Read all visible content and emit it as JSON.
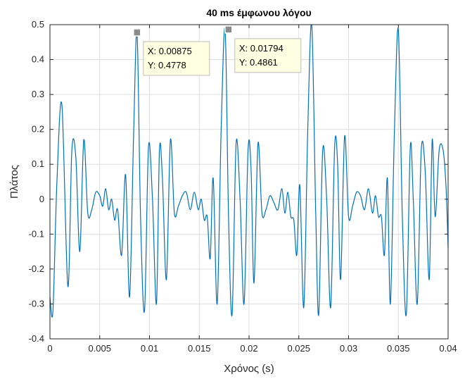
{
  "chart_data": {
    "type": "line",
    "title": "40 ms έμφωνου λόγου",
    "xlabel": "Χρόνος (s)",
    "ylabel": "Πλάτος",
    "xlim": [
      0,
      0.04
    ],
    "ylim": [
      -0.4,
      0.5
    ],
    "xticks": [
      0,
      0.005,
      0.01,
      0.015,
      0.02,
      0.025,
      0.03,
      0.035,
      0.04
    ],
    "xtick_labels": [
      "0",
      "0.005",
      "0.01",
      "0.015",
      "0.02",
      "0.025",
      "0.03",
      "0.035",
      "0.04"
    ],
    "yticks": [
      -0.4,
      -0.3,
      -0.2,
      -0.1,
      0,
      0.1,
      0.2,
      0.3,
      0.4,
      0.5
    ],
    "ytick_labels": [
      "-0.4",
      "-0.3",
      "-0.2",
      "-0.1",
      "0",
      "0.1",
      "0.2",
      "0.3",
      "0.4",
      "0.5"
    ],
    "grid": true,
    "line_color": "#0072BD",
    "series": [
      {
        "x": [
          0,
          0.0003,
          0.0007,
          0.0012,
          0.0018,
          0.0022,
          0.0026,
          0.003,
          0.0034,
          0.0038,
          0.0042,
          0.0046,
          0.005,
          0.0053,
          0.0056,
          0.0059,
          0.0062,
          0.0065,
          0.0068,
          0.0072,
          0.0076,
          0.008,
          0.0084,
          0.00875,
          0.0091,
          0.0095,
          0.0099,
          0.0103,
          0.0107,
          0.011,
          0.0113,
          0.0117,
          0.0121,
          0.0125,
          0.0129,
          0.0133,
          0.0137,
          0.0141,
          0.0145,
          0.0149,
          0.0152,
          0.0155,
          0.0158,
          0.0161,
          0.0164,
          0.0168,
          0.0172,
          0.0176,
          0.01794,
          0.0183,
          0.0187,
          0.0191,
          0.0195,
          0.0199,
          0.0202,
          0.0205,
          0.0209,
          0.0213,
          0.0217,
          0.0221,
          0.0225,
          0.0229,
          0.0233,
          0.0236,
          0.0239,
          0.0242,
          0.0245,
          0.0248,
          0.0251,
          0.0255,
          0.0259,
          0.0263,
          0.0267,
          0.027,
          0.0274,
          0.0278,
          0.0282,
          0.0286,
          0.0289,
          0.0292,
          0.0296,
          0.03,
          0.0304,
          0.0308,
          0.0312,
          0.0316,
          0.032,
          0.0324,
          0.0327,
          0.033,
          0.0333,
          0.0336,
          0.0339,
          0.0342,
          0.0346,
          0.035,
          0.0354,
          0.0358,
          0.0362,
          0.0365,
          0.0369,
          0.0373,
          0.0377,
          0.0381,
          0.0384,
          0.0387,
          0.0391,
          0.0395,
          0.0398,
          0.04
        ],
        "y": [
          -0.28,
          -0.32,
          0.05,
          0.27,
          -0.25,
          0.14,
          0.12,
          -0.15,
          0.17,
          -0.04,
          -0.03,
          0.02,
          0.01,
          -0.02,
          0.03,
          -0.03,
          0.0,
          -0.06,
          -0.03,
          -0.16,
          0.07,
          -0.28,
          0.18,
          0.4778,
          -0.05,
          -0.32,
          0.15,
          0.0,
          -0.3,
          0.14,
          0.06,
          -0.23,
          0.17,
          -0.04,
          -0.02,
          0.01,
          0.02,
          -0.03,
          0.02,
          -0.03,
          0.0,
          -0.06,
          -0.05,
          -0.17,
          0.06,
          -0.3,
          0.2,
          0.4861,
          -0.05,
          -0.33,
          0.16,
          0.0,
          -0.3,
          0.14,
          0.09,
          -0.24,
          0.16,
          -0.04,
          -0.03,
          0.01,
          -0.01,
          -0.03,
          0.03,
          -0.04,
          0.02,
          -0.05,
          -0.06,
          -0.16,
          0.04,
          -0.31,
          0.2,
          0.5,
          -0.04,
          -0.33,
          0.14,
          0.0,
          -0.31,
          0.15,
          0.1,
          -0.23,
          0.18,
          -0.05,
          -0.02,
          0.02,
          0.01,
          -0.03,
          0.03,
          -0.04,
          0.01,
          -0.05,
          -0.05,
          -0.16,
          0.06,
          -0.3,
          0.19,
          0.485,
          -0.05,
          -0.33,
          0.15,
          0.0,
          -0.3,
          0.14,
          0.08,
          -0.23,
          0.17,
          -0.05,
          0.14,
          0.14,
          0.03,
          -0.14
        ]
      }
    ],
    "datatips": [
      {
        "x": 0.00875,
        "y": 0.4778,
        "line1": "X: 0.00875",
        "line2": "Y: 0.4778"
      },
      {
        "x": 0.01794,
        "y": 0.4861,
        "line1": "X: 0.01794",
        "line2": "Y: 0.4861"
      }
    ]
  }
}
